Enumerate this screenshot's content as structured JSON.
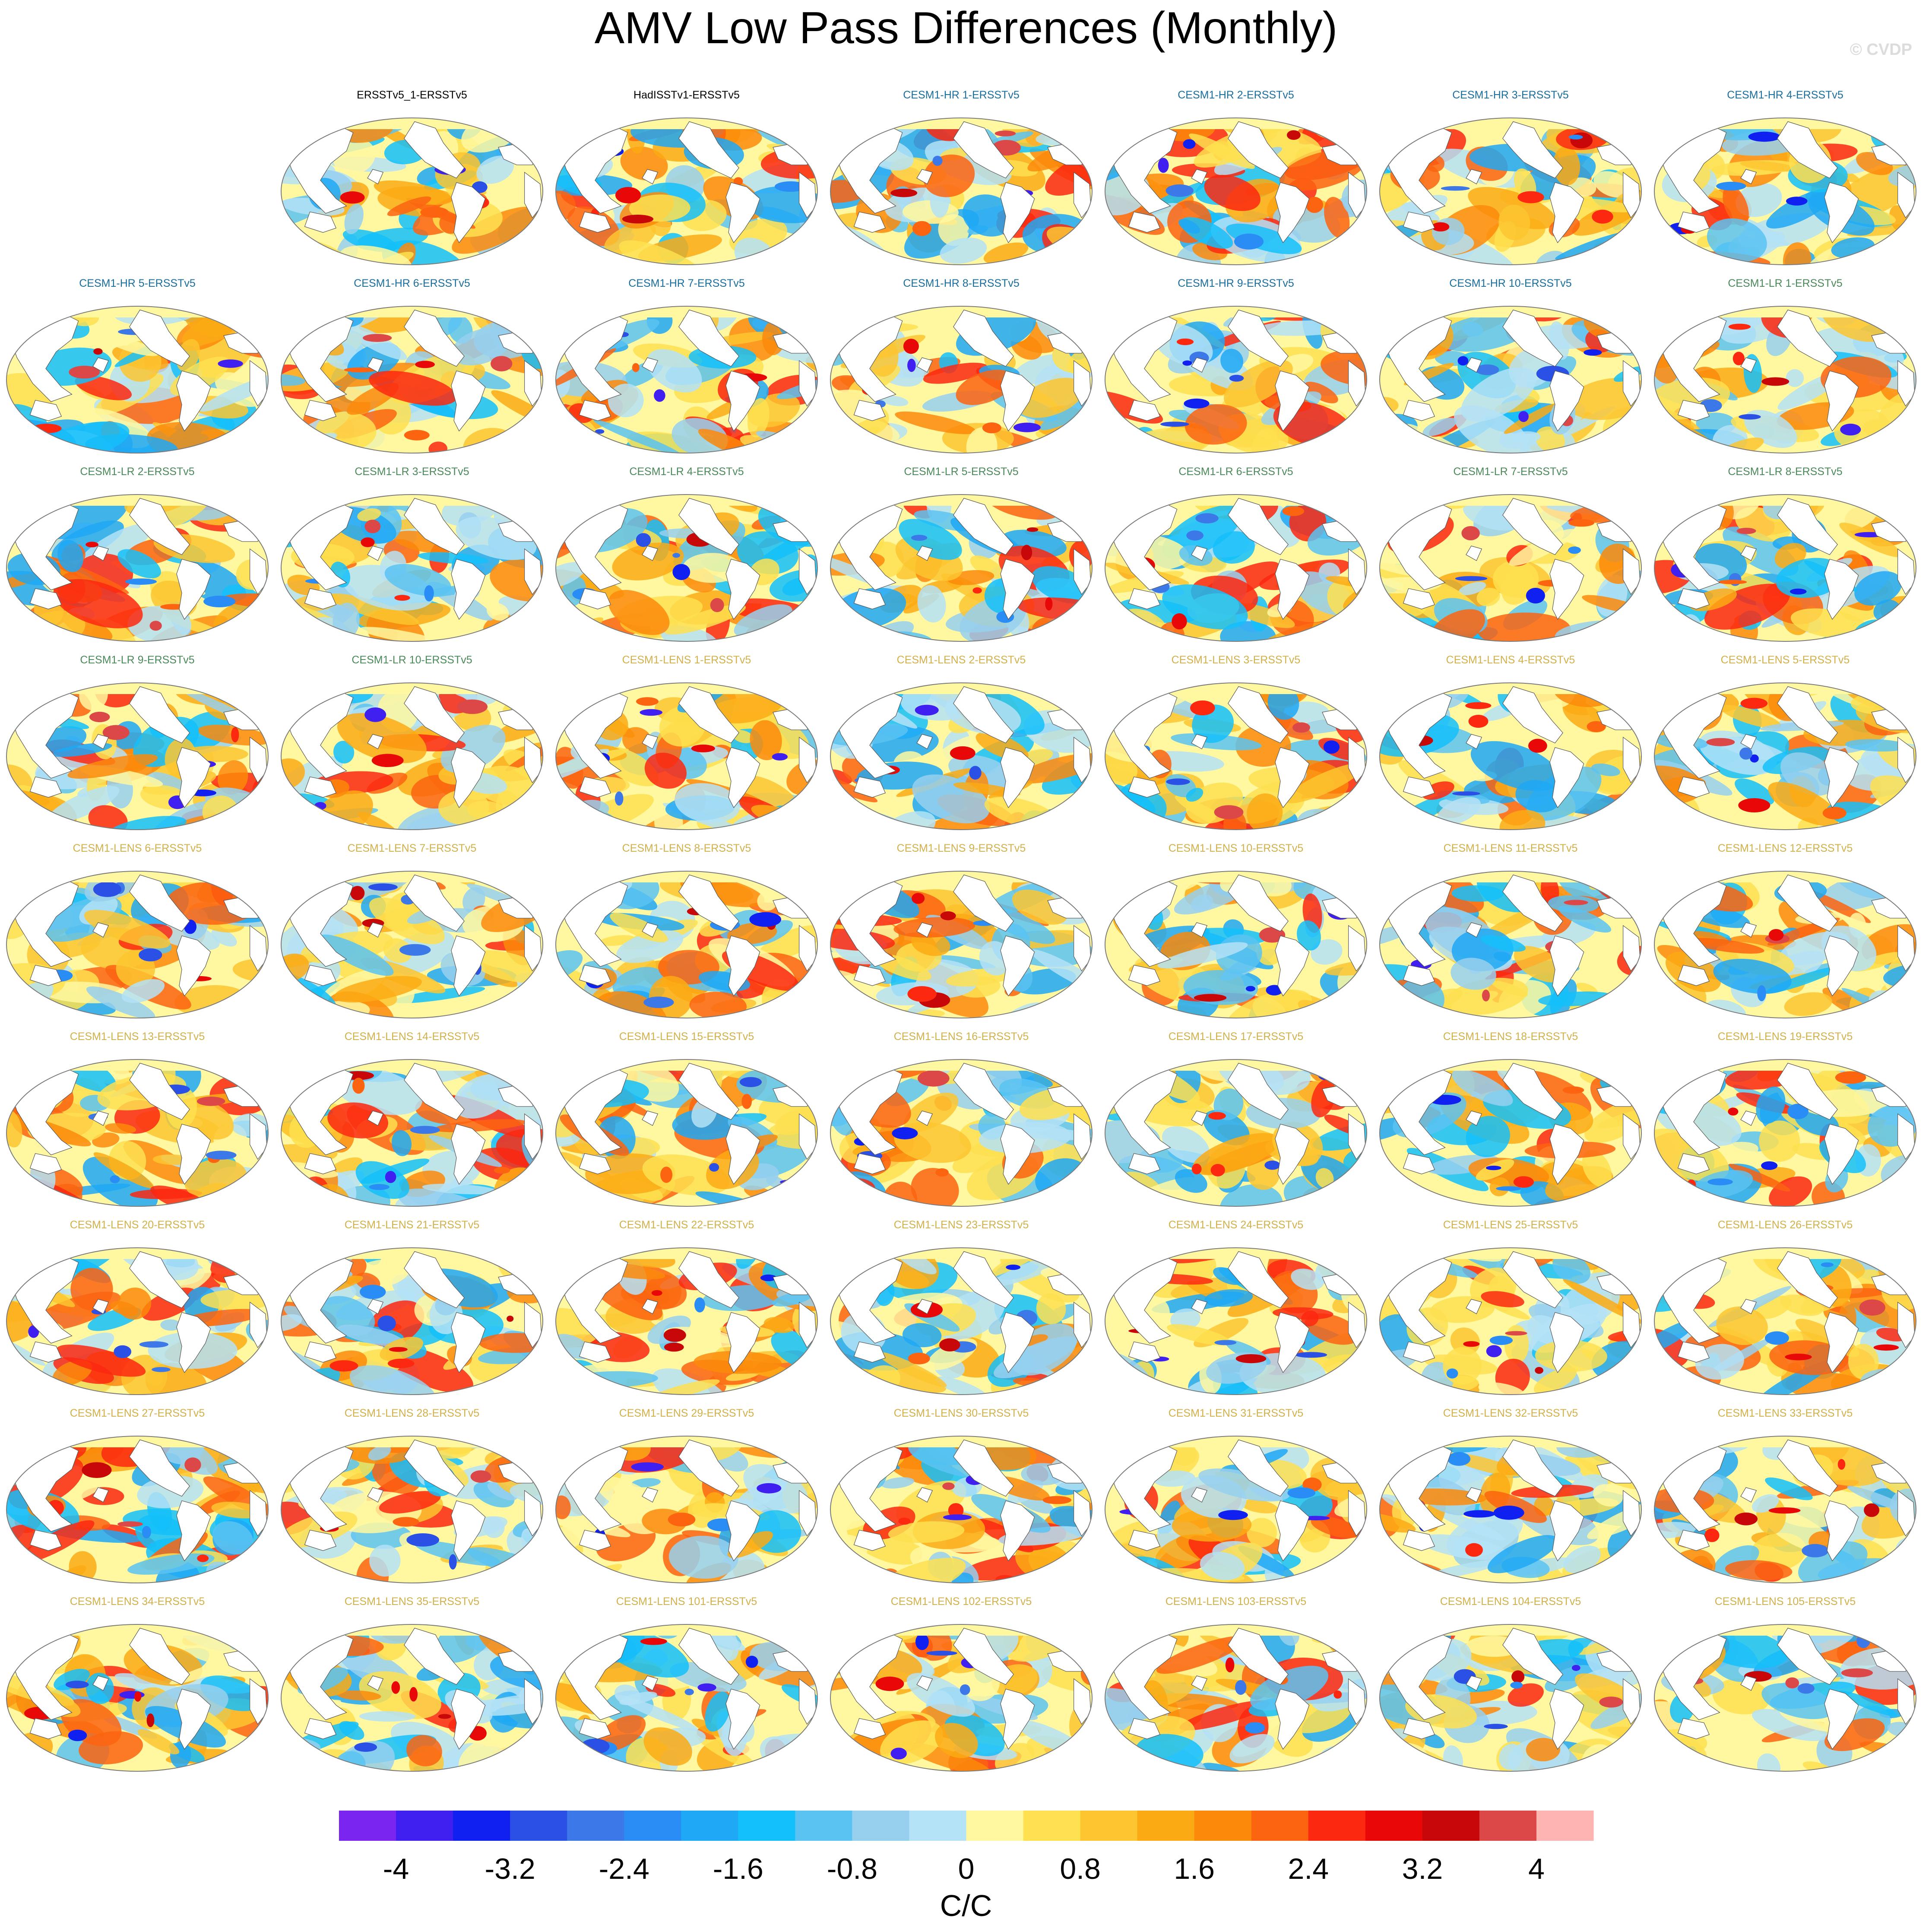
{
  "title": "AMV Low Pass Differences (Monthly)",
  "credit": "© CVDP",
  "panels": [
    {
      "label": "ERSSTv5_1-ERSSTv5",
      "color": "#000000"
    },
    {
      "label": "HadISSTv1-ERSSTv5",
      "color": "#000000"
    },
    {
      "label": "CESM1-HR 1-ERSSTv5",
      "color": "#1a6e9e"
    },
    {
      "label": "CESM1-HR 2-ERSSTv5",
      "color": "#1a6e9e"
    },
    {
      "label": "CESM1-HR 3-ERSSTv5",
      "color": "#1a6e9e"
    },
    {
      "label": "CESM1-HR 4-ERSSTv5",
      "color": "#1a6e9e"
    },
    {
      "label": "CESM1-HR 5-ERSSTv5",
      "color": "#1a6e9e"
    },
    {
      "label": "CESM1-HR 6-ERSSTv5",
      "color": "#1a6e9e"
    },
    {
      "label": "CESM1-HR 7-ERSSTv5",
      "color": "#1a6e9e"
    },
    {
      "label": "CESM1-HR 8-ERSSTv5",
      "color": "#1a6e9e"
    },
    {
      "label": "CESM1-HR 9-ERSSTv5",
      "color": "#1a6e9e"
    },
    {
      "label": "CESM1-HR 10-ERSSTv5",
      "color": "#1a6e9e"
    },
    {
      "label": "CESM1-LR 1-ERSSTv5",
      "color": "#4a8a5a"
    },
    {
      "label": "CESM1-LR 2-ERSSTv5",
      "color": "#4a8a5a"
    },
    {
      "label": "CESM1-LR 3-ERSSTv5",
      "color": "#4a8a5a"
    },
    {
      "label": "CESM1-LR 4-ERSSTv5",
      "color": "#4a8a5a"
    },
    {
      "label": "CESM1-LR 5-ERSSTv5",
      "color": "#4a8a5a"
    },
    {
      "label": "CESM1-LR 6-ERSSTv5",
      "color": "#4a8a5a"
    },
    {
      "label": "CESM1-LR 7-ERSSTv5",
      "color": "#4a8a5a"
    },
    {
      "label": "CESM1-LR 8-ERSSTv5",
      "color": "#4a8a5a"
    },
    {
      "label": "CESM1-LR 9-ERSSTv5",
      "color": "#4a8a5a"
    },
    {
      "label": "CESM1-LR 10-ERSSTv5",
      "color": "#4a8a5a"
    },
    {
      "label": "CESM1-LENS 1-ERSSTv5",
      "color": "#d2b04a"
    },
    {
      "label": "CESM1-LENS 2-ERSSTv5",
      "color": "#d2b04a"
    },
    {
      "label": "CESM1-LENS 3-ERSSTv5",
      "color": "#d2b04a"
    },
    {
      "label": "CESM1-LENS 4-ERSSTv5",
      "color": "#d2b04a"
    },
    {
      "label": "CESM1-LENS 5-ERSSTv5",
      "color": "#d2b04a"
    },
    {
      "label": "CESM1-LENS 6-ERSSTv5",
      "color": "#d2b04a"
    },
    {
      "label": "CESM1-LENS 7-ERSSTv5",
      "color": "#d2b04a"
    },
    {
      "label": "CESM1-LENS 8-ERSSTv5",
      "color": "#d2b04a"
    },
    {
      "label": "CESM1-LENS 9-ERSSTv5",
      "color": "#d2b04a"
    },
    {
      "label": "CESM1-LENS 10-ERSSTv5",
      "color": "#d2b04a"
    },
    {
      "label": "CESM1-LENS 11-ERSSTv5",
      "color": "#d2b04a"
    },
    {
      "label": "CESM1-LENS 12-ERSSTv5",
      "color": "#d2b04a"
    },
    {
      "label": "CESM1-LENS 13-ERSSTv5",
      "color": "#d2b04a"
    },
    {
      "label": "CESM1-LENS 14-ERSSTv5",
      "color": "#d2b04a"
    },
    {
      "label": "CESM1-LENS 15-ERSSTv5",
      "color": "#d2b04a"
    },
    {
      "label": "CESM1-LENS 16-ERSSTv5",
      "color": "#d2b04a"
    },
    {
      "label": "CESM1-LENS 17-ERSSTv5",
      "color": "#d2b04a"
    },
    {
      "label": "CESM1-LENS 18-ERSSTv5",
      "color": "#d2b04a"
    },
    {
      "label": "CESM1-LENS 19-ERSSTv5",
      "color": "#d2b04a"
    },
    {
      "label": "CESM1-LENS 20-ERSSTv5",
      "color": "#d2b04a"
    },
    {
      "label": "CESM1-LENS 21-ERSSTv5",
      "color": "#d2b04a"
    },
    {
      "label": "CESM1-LENS 22-ERSSTv5",
      "color": "#d2b04a"
    },
    {
      "label": "CESM1-LENS 23-ERSSTv5",
      "color": "#d2b04a"
    },
    {
      "label": "CESM1-LENS 24-ERSSTv5",
      "color": "#d2b04a"
    },
    {
      "label": "CESM1-LENS 25-ERSSTv5",
      "color": "#d2b04a"
    },
    {
      "label": "CESM1-LENS 26-ERSSTv5",
      "color": "#d2b04a"
    },
    {
      "label": "CESM1-LENS 27-ERSSTv5",
      "color": "#d2b04a"
    },
    {
      "label": "CESM1-LENS 28-ERSSTv5",
      "color": "#d2b04a"
    },
    {
      "label": "CESM1-LENS 29-ERSSTv5",
      "color": "#d2b04a"
    },
    {
      "label": "CESM1-LENS 30-ERSSTv5",
      "color": "#d2b04a"
    },
    {
      "label": "CESM1-LENS 31-ERSSTv5",
      "color": "#d2b04a"
    },
    {
      "label": "CESM1-LENS 32-ERSSTv5",
      "color": "#d2b04a"
    },
    {
      "label": "CESM1-LENS 33-ERSSTv5",
      "color": "#d2b04a"
    },
    {
      "label": "CESM1-LENS 34-ERSSTv5",
      "color": "#d2b04a"
    },
    {
      "label": "CESM1-LENS 35-ERSSTv5",
      "color": "#d2b04a"
    },
    {
      "label": "CESM1-LENS 101-ERSSTv5",
      "color": "#d2b04a"
    },
    {
      "label": "CESM1-LENS 102-ERSSTv5",
      "color": "#d2b04a"
    },
    {
      "label": "CESM1-LENS 103-ERSSTv5",
      "color": "#d2b04a"
    },
    {
      "label": "CESM1-LENS 104-ERSSTv5",
      "color": "#d2b04a"
    },
    {
      "label": "CESM1-LENS 105-ERSSTv5",
      "color": "#d2b04a"
    }
  ],
  "colorbar": {
    "colors": [
      "#7a26f0",
      "#4020f0",
      "#1020f0",
      "#2a50e6",
      "#3c78e8",
      "#2a8cf5",
      "#1ea8f5",
      "#14c0fa",
      "#5ac3f2",
      "#96d0ee",
      "#b4e2f6",
      "#fff8a0",
      "#fee050",
      "#fdc630",
      "#fcaa14",
      "#fc8a0a",
      "#fc6410",
      "#fc2810",
      "#e80808",
      "#c80808",
      "#dc4848",
      "#ffb4b4"
    ],
    "tick_labels": [
      "-4",
      "-3.2",
      "-2.4",
      "-1.6",
      "-0.8",
      "0",
      "0.8",
      "1.6",
      "2.4",
      "3.2",
      "4"
    ],
    "units": "C/C"
  }
}
